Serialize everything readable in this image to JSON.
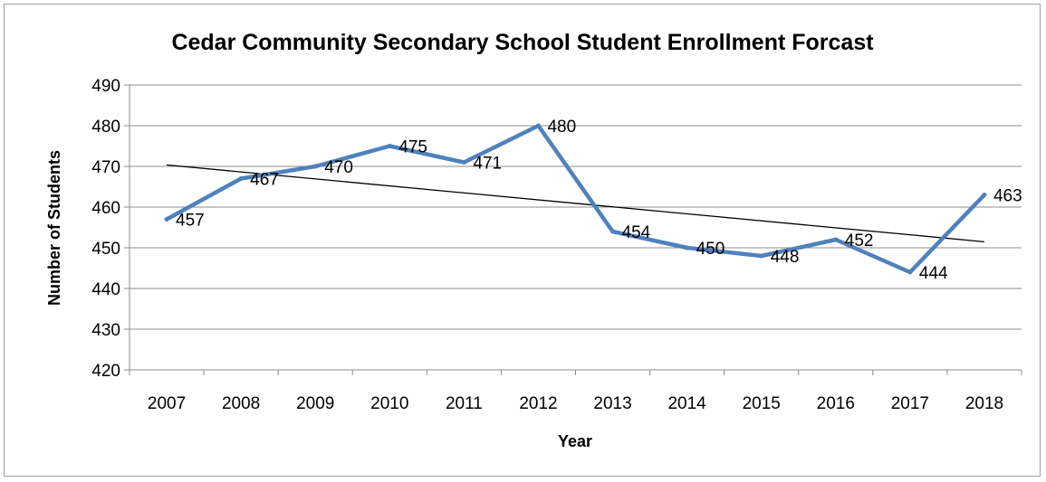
{
  "chart_data": {
    "type": "line",
    "title": "Cedar Community Secondary School Student Enrollment Forcast",
    "xlabel": "Year",
    "ylabel": "Number of Students",
    "categories": [
      "2007",
      "2008",
      "2009",
      "2010",
      "2011",
      "2012",
      "2013",
      "2014",
      "2015",
      "2016",
      "2017",
      "2018"
    ],
    "series": [
      {
        "values": [
          457,
          467,
          470,
          475,
          471,
          480,
          454,
          450,
          448,
          452,
          444,
          463
        ],
        "data_labels": true,
        "color": "#4f81bd"
      }
    ],
    "trendline": {
      "type": "linear",
      "color": "#000000"
    },
    "ylim": [
      420,
      490
    ],
    "yticks": [
      420,
      430,
      440,
      450,
      460,
      470,
      480,
      490
    ],
    "grid": {
      "horizontal": true,
      "vertical": false
    },
    "legend": "none"
  }
}
